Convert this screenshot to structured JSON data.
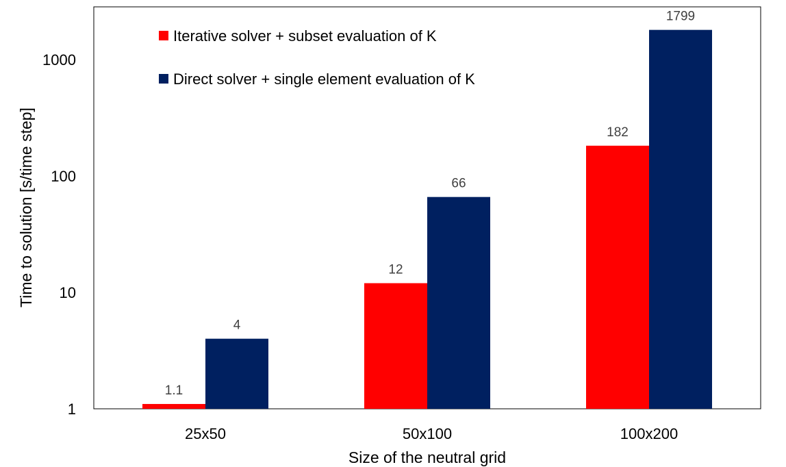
{
  "chart_data": {
    "type": "bar",
    "title": "",
    "xlabel": "Size of the neutral grid",
    "ylabel": "Time to solution [s/time step]",
    "y_scale": "log",
    "ylim": [
      1,
      2500
    ],
    "y_ticks": [
      1,
      10,
      100,
      1000
    ],
    "grid": false,
    "legend_position": "top-left",
    "categories": [
      "25x50",
      "50x100",
      "100x200"
    ],
    "series": [
      {
        "name": "Iterative solver + subset evaluation of K",
        "color": "#ff0000",
        "values": [
          1.1,
          12,
          182
        ],
        "labels": [
          "1.1",
          "12",
          "182"
        ]
      },
      {
        "name": "Direct solver + single element evaluation of K",
        "color": "#002060",
        "values": [
          4,
          66,
          1799
        ],
        "labels": [
          "4",
          "66",
          "1799"
        ]
      }
    ]
  }
}
